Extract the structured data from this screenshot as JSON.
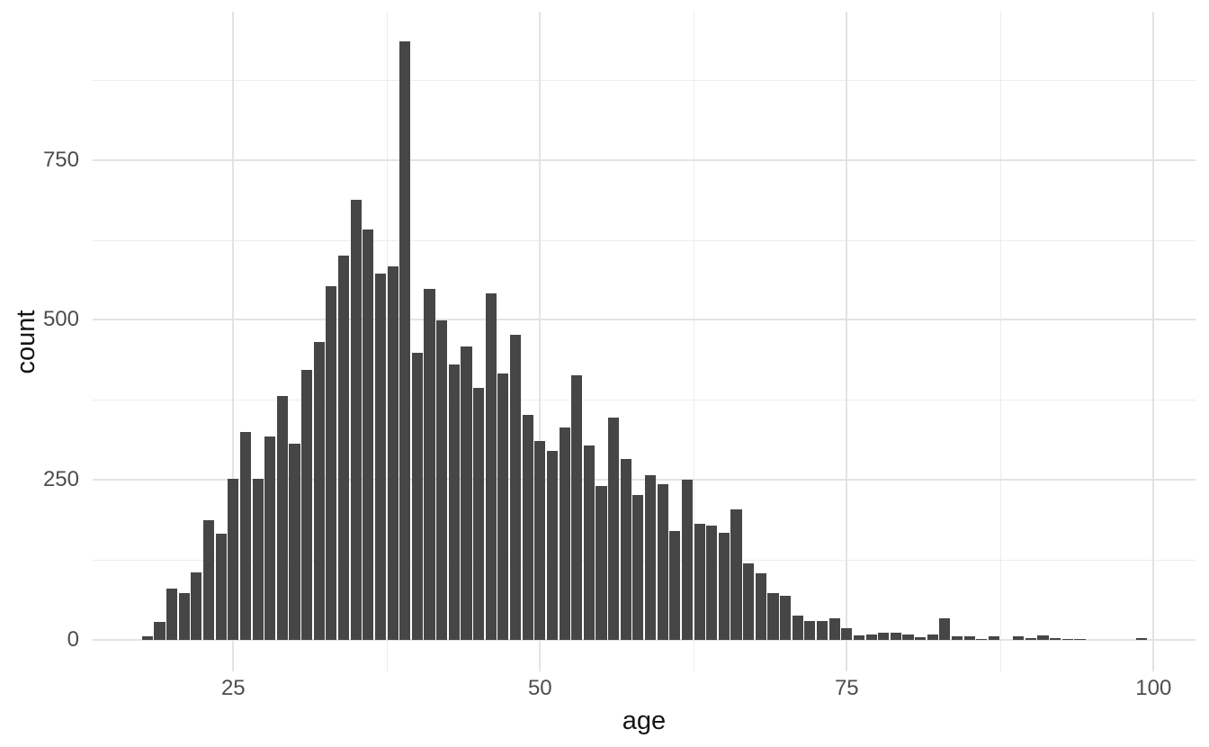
{
  "chart_data": {
    "type": "bar",
    "subtype": "histogram",
    "title": "",
    "xlabel": "age",
    "ylabel": "count",
    "x": [
      18,
      19,
      20,
      21,
      22,
      23,
      24,
      25,
      26,
      27,
      28,
      29,
      30,
      31,
      32,
      33,
      34,
      35,
      36,
      37,
      38,
      39,
      40,
      41,
      42,
      43,
      44,
      45,
      46,
      47,
      48,
      49,
      50,
      51,
      52,
      53,
      54,
      55,
      56,
      57,
      58,
      59,
      60,
      61,
      62,
      63,
      64,
      65,
      66,
      67,
      68,
      69,
      70,
      71,
      72,
      73,
      74,
      75,
      76,
      77,
      78,
      79,
      80,
      81,
      82,
      83,
      84,
      85,
      86,
      87,
      88,
      89,
      90,
      91,
      92,
      93,
      94,
      95,
      96,
      97,
      98,
      99
    ],
    "values": [
      5,
      28,
      80,
      73,
      105,
      187,
      166,
      252,
      325,
      252,
      318,
      381,
      307,
      422,
      465,
      552,
      600,
      687,
      641,
      572,
      584,
      935,
      448,
      548,
      499,
      431,
      459,
      394,
      541,
      416,
      477,
      351,
      311,
      296,
      332,
      414,
      304,
      240,
      347,
      283,
      226,
      257,
      243,
      170,
      251,
      182,
      179,
      167,
      204,
      120,
      104,
      73,
      69,
      38,
      29,
      30,
      34,
      19,
      7,
      8,
      12,
      11,
      8,
      4,
      9,
      34,
      5,
      5,
      2,
      6,
      0,
      6,
      3,
      7,
      3,
      2,
      2,
      0,
      0,
      0,
      0,
      3
    ],
    "binwidth": 1,
    "xlim": [
      13.5,
      103.5
    ],
    "ylim": [
      -47,
      982
    ],
    "x_ticks": [
      {
        "value": 25,
        "label": "25"
      },
      {
        "value": 50,
        "label": "50"
      },
      {
        "value": 75,
        "label": "75"
      },
      {
        "value": 100,
        "label": "100"
      }
    ],
    "y_ticks": [
      {
        "value": 0,
        "label": "0"
      },
      {
        "value": 250,
        "label": "250"
      },
      {
        "value": 500,
        "label": "500"
      },
      {
        "value": 750,
        "label": "750"
      }
    ],
    "x_minor_gridlines": [
      37.5,
      62.5,
      87.5
    ],
    "y_minor_gridlines": [
      125,
      375,
      625,
      875
    ],
    "grid": true,
    "legend": false,
    "colors": {
      "bar_fill": "#464646",
      "major_gridline": "#e3e3e3",
      "minor_gridline": "#ededed",
      "tick_label_text": "#4d4d4d",
      "axis_title_text": "#151515",
      "background": "#ffffff"
    }
  }
}
